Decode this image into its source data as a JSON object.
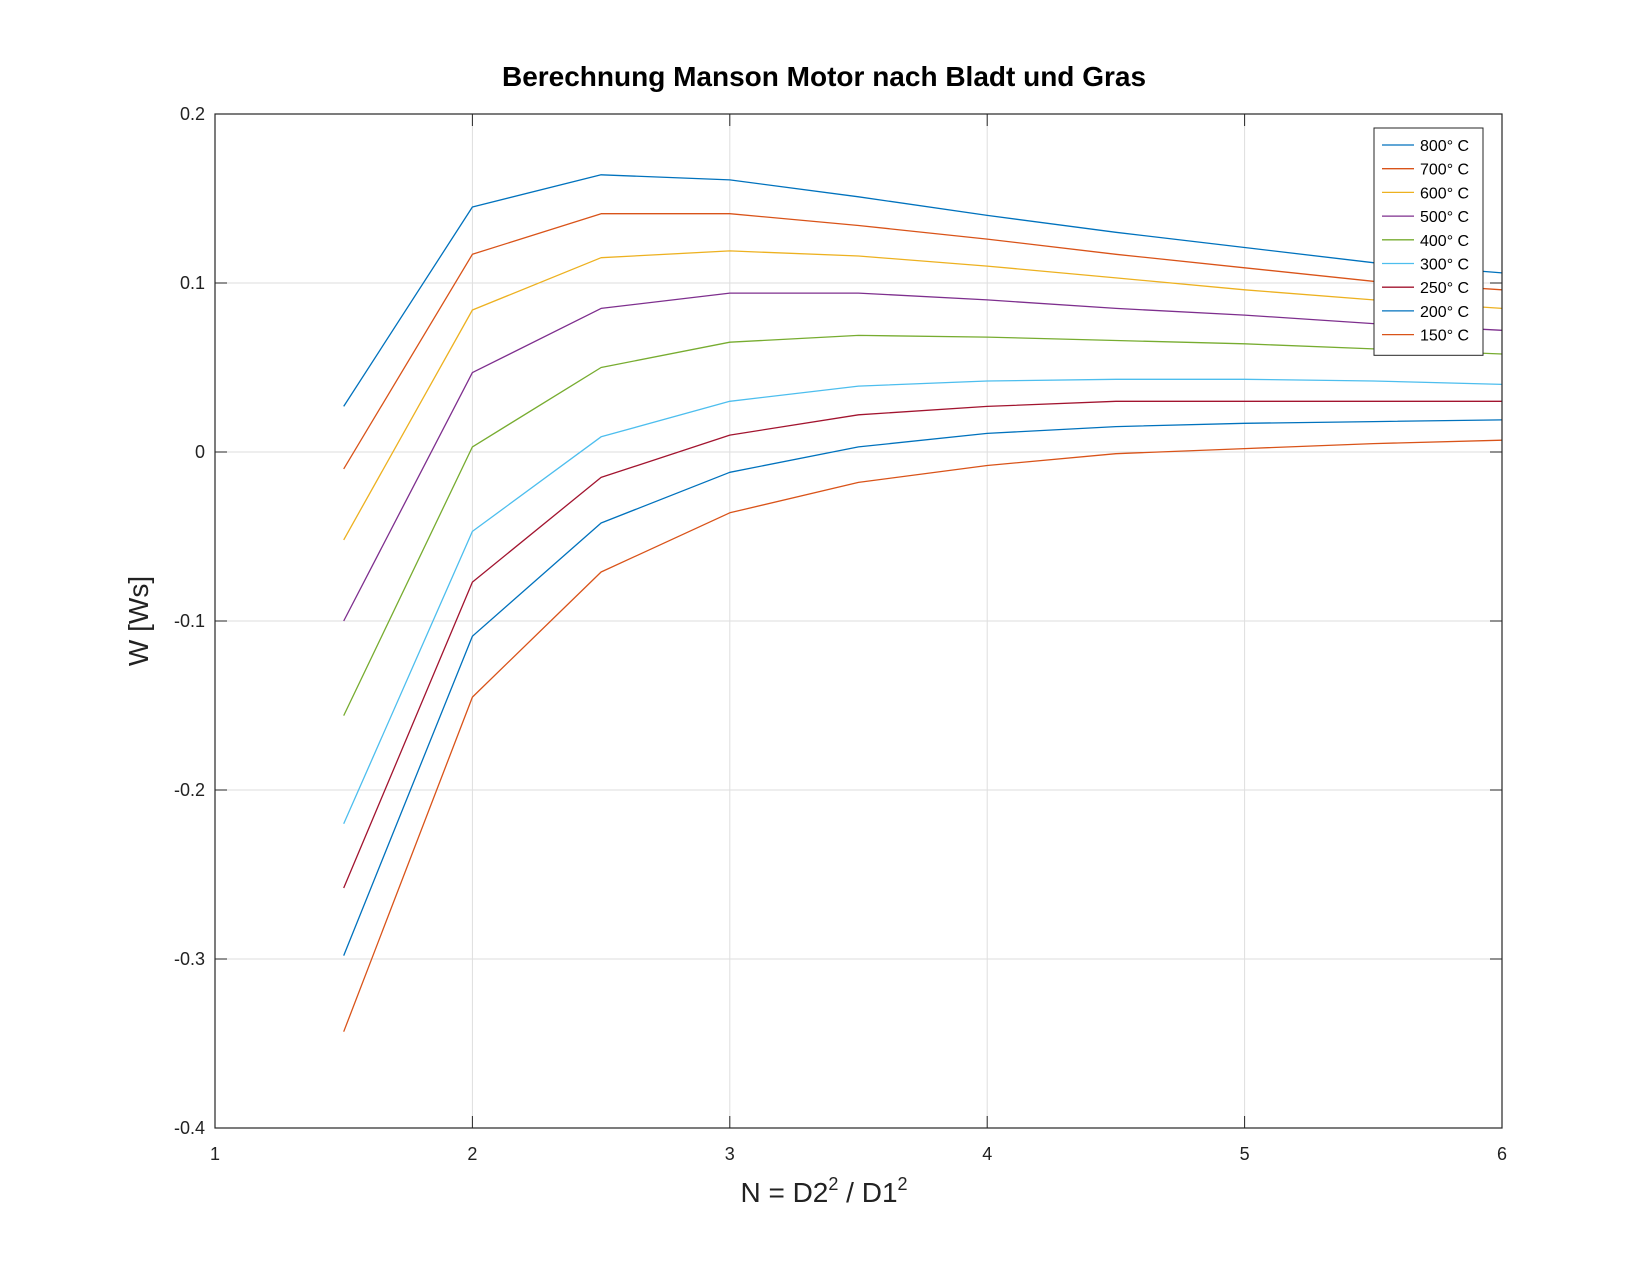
{
  "chart_data": {
    "type": "line",
    "title": "Berechnung Manson Motor nach Bladt und Gras",
    "xlabel": {
      "base": "N = D2",
      "sup1": "2",
      "mid": " / D1",
      "sup2": "2"
    },
    "ylabel": "W [Ws]",
    "xlim": [
      1,
      6
    ],
    "ylim": [
      -0.4,
      0.2
    ],
    "xticks": [
      1,
      2,
      3,
      4,
      5,
      6
    ],
    "xtick_labels": [
      "1",
      "2",
      "3",
      "4",
      "5",
      "6"
    ],
    "yticks": [
      -0.4,
      -0.3,
      -0.2,
      -0.1,
      0,
      0.1,
      0.2
    ],
    "ytick_labels": [
      "-0.4",
      "-0.3",
      "-0.2",
      "-0.1",
      "0",
      "0.1",
      "0.2"
    ],
    "grid": true,
    "legend_position": "top-right",
    "x": [
      1.5,
      2,
      2.5,
      3,
      3.5,
      4,
      4.5,
      5,
      5.5,
      6
    ],
    "series": [
      {
        "name": "800° C",
        "color": "#0072BD",
        "values": [
          0.027,
          0.145,
          0.164,
          0.161,
          0.151,
          0.14,
          0.13,
          0.121,
          0.112,
          0.106
        ]
      },
      {
        "name": "700° C",
        "color": "#D95319",
        "values": [
          -0.01,
          0.117,
          0.141,
          0.141,
          0.134,
          0.126,
          0.117,
          0.109,
          0.101,
          0.096
        ]
      },
      {
        "name": "600° C",
        "color": "#EDB120",
        "values": [
          -0.052,
          0.084,
          0.115,
          0.119,
          0.116,
          0.11,
          0.103,
          0.096,
          0.09,
          0.085
        ]
      },
      {
        "name": "500° C",
        "color": "#7E2F8E",
        "values": [
          -0.1,
          0.047,
          0.085,
          0.094,
          0.094,
          0.09,
          0.085,
          0.081,
          0.076,
          0.072
        ]
      },
      {
        "name": "400° C",
        "color": "#77AC30",
        "values": [
          -0.156,
          0.003,
          0.05,
          0.065,
          0.069,
          0.068,
          0.066,
          0.064,
          0.061,
          0.058
        ]
      },
      {
        "name": "300° C",
        "color": "#4DBEEE",
        "values": [
          -0.22,
          -0.047,
          0.009,
          0.03,
          0.039,
          0.042,
          0.043,
          0.043,
          0.042,
          0.04
        ]
      },
      {
        "name": "250° C",
        "color": "#A2142F",
        "values": [
          -0.258,
          -0.077,
          -0.015,
          0.01,
          0.022,
          0.027,
          0.03,
          0.03,
          0.03,
          0.03
        ]
      },
      {
        "name": "200° C",
        "color": "#0072BD",
        "values": [
          -0.298,
          -0.109,
          -0.042,
          -0.012,
          0.003,
          0.011,
          0.015,
          0.017,
          0.018,
          0.019
        ]
      },
      {
        "name": "150° C",
        "color": "#D95319",
        "values": [
          -0.343,
          -0.145,
          -0.071,
          -0.036,
          -0.018,
          -0.008,
          -0.001,
          0.002,
          0.005,
          0.007
        ]
      }
    ]
  }
}
